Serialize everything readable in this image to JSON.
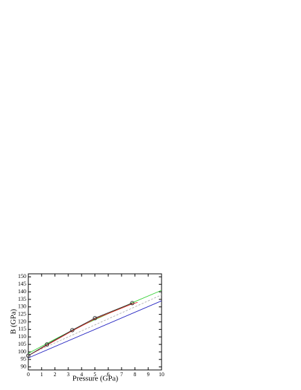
{
  "chart_data": {
    "type": "line",
    "x_label": "Pressure (GPa)",
    "y_label": "B (GPa)",
    "xlim": [
      0,
      10
    ],
    "ylim": [
      88,
      152
    ],
    "xticks": [
      0,
      1,
      2,
      3,
      4,
      5,
      6,
      7,
      8,
      9,
      10
    ],
    "yticks": [
      90,
      95,
      100,
      105,
      110,
      115,
      120,
      125,
      130,
      135,
      140,
      145,
      150
    ],
    "grid": false,
    "series": [
      {
        "color": "#2020c0",
        "x": [
          0,
          10
        ],
        "values": [
          96,
          134
        ]
      },
      {
        "color": "#b0b0b0",
        "dash": true,
        "x": [
          0,
          10
        ],
        "values": [
          98,
          138
        ]
      },
      {
        "color": "#30d030",
        "x": [
          0,
          2,
          4,
          6,
          8,
          10
        ],
        "values": [
          99,
          108.5,
          117.5,
          125.5,
          133.5,
          141
        ]
      },
      {
        "color": "#e02020",
        "x": [
          0,
          1.4,
          3.3,
          5,
          7.8,
          8.2
        ],
        "values": [
          97.5,
          104.5,
          114,
          122,
          132,
          133
        ]
      },
      {
        "color": "#303030",
        "marker": "circle",
        "x": [
          0,
          1.4,
          3.3,
          5,
          7.8
        ],
        "values": [
          97.5,
          105,
          114.5,
          122.5,
          132.5
        ]
      }
    ]
  }
}
